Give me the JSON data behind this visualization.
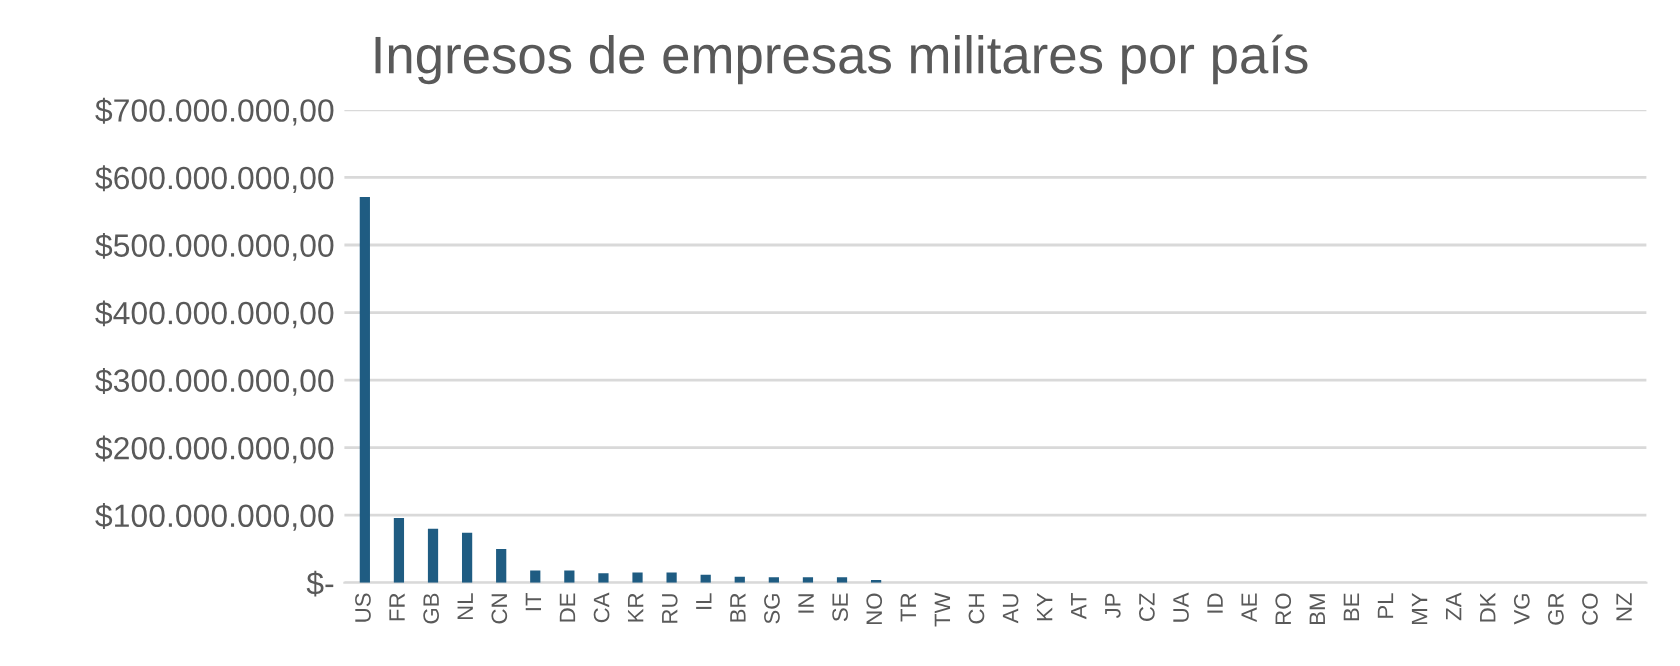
{
  "chart_data": {
    "type": "bar",
    "title": "Ingresos de empresas militares por país",
    "categories": [
      "US",
      "FR",
      "GB",
      "NL",
      "CN",
      "IT",
      "DE",
      "CA",
      "KR",
      "RU",
      "IL",
      "BR",
      "SG",
      "IN",
      "SE",
      "NO",
      "TR",
      "TW",
      "CH",
      "AU",
      "KY",
      "AT",
      "JP",
      "CZ",
      "UA",
      "ID",
      "AE",
      "RO",
      "BM",
      "BE",
      "PL",
      "MY",
      "ZA",
      "DK",
      "VG",
      "GR",
      "CO",
      "NZ"
    ],
    "values": [
      571000000,
      96000000,
      80000000,
      74000000,
      50000000,
      18000000,
      18000000,
      14000000,
      15000000,
      15000000,
      12000000,
      9000000,
      8000000,
      8000000,
      8000000,
      4000000,
      0,
      0,
      0,
      0,
      0,
      0,
      0,
      0,
      0,
      0,
      0,
      0,
      0,
      0,
      0,
      0,
      0,
      0,
      0,
      0,
      0,
      0
    ],
    "color": "#1f5c82",
    "ylim": [
      0,
      700000000
    ],
    "yticks": [
      {
        "value": 0,
        "label": "$-"
      },
      {
        "value": 100000000,
        "label": "$100.000.000,00"
      },
      {
        "value": 200000000,
        "label": "$200.000.000,00"
      },
      {
        "value": 300000000,
        "label": "$300.000.000,00"
      },
      {
        "value": 400000000,
        "label": "$400.000.000,00"
      },
      {
        "value": 500000000,
        "label": "$500.000.000,00"
      },
      {
        "value": 600000000,
        "label": "$600.000.000,00"
      },
      {
        "value": 700000000,
        "label": "$700.000.000,00"
      }
    ],
    "grid": "y"
  }
}
